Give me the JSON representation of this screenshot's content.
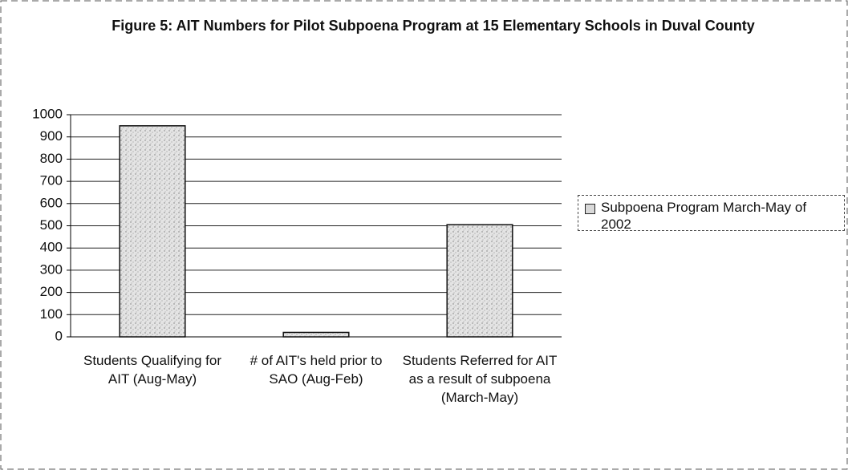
{
  "chart_data": {
    "type": "bar",
    "title": "Figure 5: AIT Numbers for Pilot Subpoena Program at 15 Elementary Schools in Duval County",
    "categories": [
      "Students Qualifying for AIT (Aug-May)",
      "# of AIT's held prior to SAO (Aug-Feb)",
      "Students Referred for AIT as a result of subpoena (March-May)"
    ],
    "series": [
      {
        "name": "Subpoena Program March-May of 2002",
        "color": "#d9d9d9",
        "values": [
          950,
          20,
          505
        ]
      }
    ],
    "ylim": [
      0,
      1000
    ],
    "yticks": [
      0,
      100,
      200,
      300,
      400,
      500,
      600,
      700,
      800,
      900,
      1000
    ],
    "grid": true,
    "legend": "right"
  }
}
